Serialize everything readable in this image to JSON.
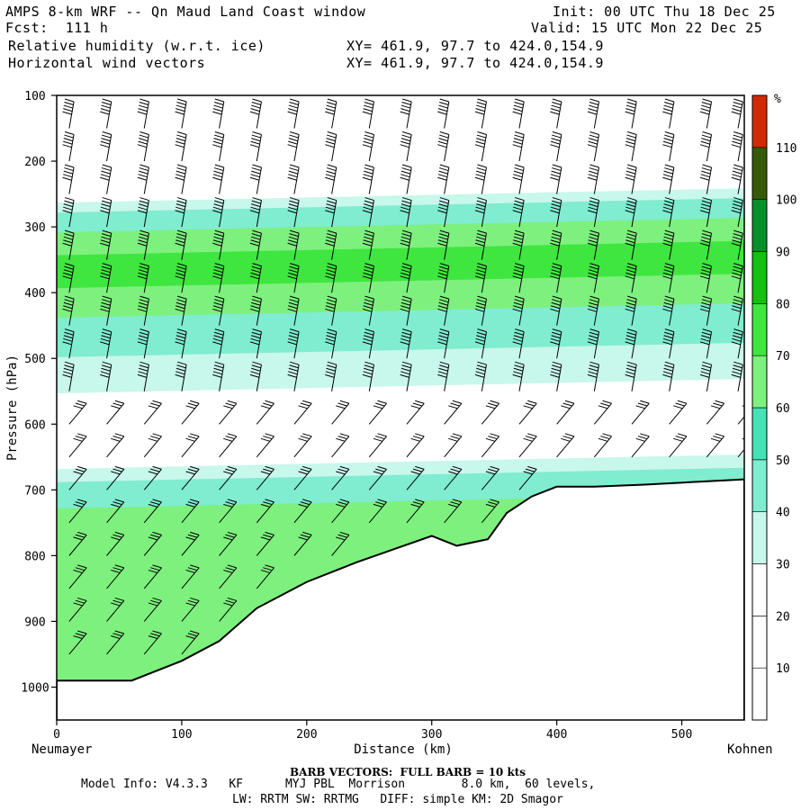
{
  "header": {
    "title": "AMPS 8-km WRF -- Qn Maud Land Coast window",
    "forecast": "Fcst:  111 h",
    "field1": "Relative humidity (w.r.t. ice)",
    "field2": "Horizontal wind vectors",
    "init": "Init: 00 UTC Thu 18 Dec 25",
    "valid": "Valid: 15 UTC Mon 22 Dec 25",
    "xy1": "XY= 461.9, 97.7 to 424.0,154.9",
    "xy2": "XY= 461.9, 97.7 to 424.0,154.9"
  },
  "chart_data": {
    "type": "heatmap",
    "title": "Relative humidity (w.r.t. ice) cross-section with horizontal wind vectors",
    "xlabel": "Distance (km)",
    "ylabel": "Pressure (hPa)",
    "x_range": [
      0,
      550
    ],
    "y_range": [
      1050,
      100
    ],
    "x_ticks": [
      0,
      100,
      200,
      300,
      400,
      500
    ],
    "y_ticks": [
      100,
      200,
      300,
      400,
      500,
      600,
      700,
      800,
      900,
      1000
    ],
    "x_start_label": "Neumayer",
    "x_end_label": "Kohnen",
    "colorbar_unit": "%",
    "colorbar_levels": [
      10,
      20,
      30,
      40,
      50,
      60,
      70,
      80,
      90,
      100,
      110
    ],
    "colorbar_colors": [
      "#ffffff",
      "#ffffff",
      "#ffffff",
      "#c8f7ec",
      "#80ecd0",
      "#44e2b4",
      "#7ef07e",
      "#3fe63f",
      "#12c112",
      "#078f2c",
      "#365a0a",
      "#d22a00"
    ],
    "terrain": {
      "distance_km": [
        0,
        30,
        60,
        100,
        130,
        160,
        200,
        240,
        270,
        300,
        320,
        345,
        360,
        380,
        400,
        430,
        470,
        510,
        550
      ],
      "surface_pressure_hPa": [
        990,
        990,
        990,
        960,
        930,
        880,
        840,
        810,
        790,
        770,
        785,
        775,
        735,
        710,
        695,
        695,
        692,
        688,
        684
      ]
    },
    "rh_layers": [
      {
        "rh": 0,
        "top_hPa": 100,
        "color": "#ffffff"
      },
      {
        "rh": 35,
        "top_hPa": 255,
        "color": "#c8f7ec"
      },
      {
        "rh": 45,
        "top_hPa": 270,
        "color": "#80ecd0"
      },
      {
        "rh": 65,
        "top_hPa": 300,
        "color": "#7ef07e"
      },
      {
        "rh": 75,
        "top_hPa": 335,
        "color": "#3fe63f"
      },
      {
        "rh": 65,
        "top_hPa": 385,
        "color": "#7ef07e"
      },
      {
        "rh": 45,
        "top_hPa": 430,
        "color": "#80ecd0"
      },
      {
        "rh": 35,
        "top_hPa": 490,
        "color": "#c8f7ec"
      },
      {
        "rh": 15,
        "top_hPa": 545,
        "color": "#ffffff"
      },
      {
        "rh": 35,
        "top_hPa": 660,
        "color": "#c8f7ec"
      },
      {
        "rh": 45,
        "top_hPa": 680,
        "color": "#80ecd0"
      },
      {
        "rh": 65,
        "top_hPa": 720,
        "color": "#7ef07e"
      }
    ],
    "barb_columns_km": [
      10,
      40,
      70,
      100,
      130,
      160,
      190,
      220,
      250,
      280,
      310,
      340,
      370,
      400,
      430,
      460,
      490,
      520,
      545
    ],
    "barb_levels_hPa": [
      150,
      200,
      250,
      300,
      350,
      400,
      450,
      500,
      550,
      600,
      650,
      700,
      750,
      800,
      850,
      900,
      950
    ]
  },
  "footer": {
    "barb": "BARB VECTORS:  FULL BARB = 10 kts",
    "info1": "Model Info: V4.3.3   KF      MYJ PBL  Morrison        8.0 km,  60 levels,",
    "info2": "LW: RRTM SW: RRTMG   DIFF: simple KM: 2D Smagor"
  }
}
